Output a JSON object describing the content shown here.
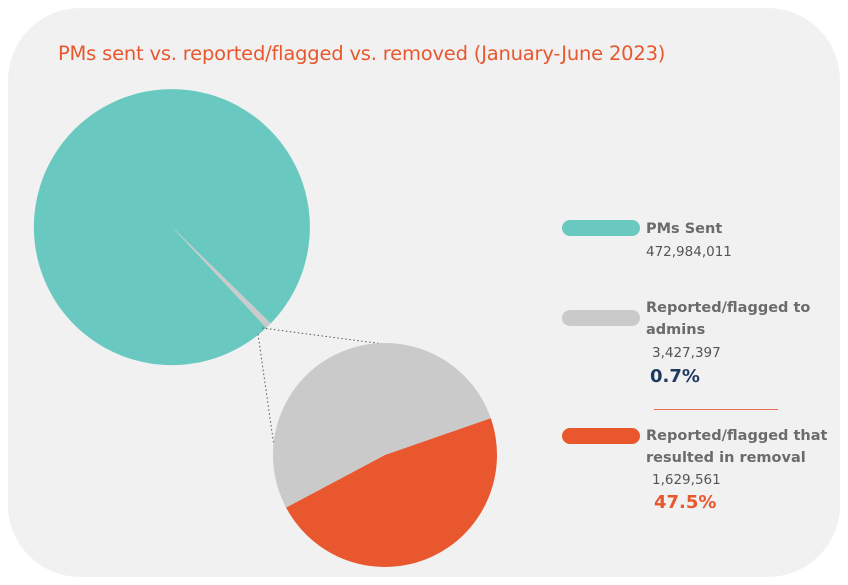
{
  "colors": {
    "sent": "#69c9c0",
    "reported": "#cacaca",
    "removed": "#e8572d",
    "pct_reported": "#1f3a5f",
    "pct_removed": "#e8572d"
  },
  "chart_data": {
    "type": "pie",
    "title": "PMs sent vs. reported/flagged vs. removed (January-June 2023)",
    "main_pie": {
      "slices": [
        {
          "label": "PMs Sent",
          "value": 472984011
        },
        {
          "label": "Reported/flagged to admins",
          "value": 3427397
        }
      ]
    },
    "detail_pie": {
      "slices": [
        {
          "label": "Reported/flagged to admins",
          "value": 1797836
        },
        {
          "label": "Reported/flagged that resulted in removal",
          "value": 1629561
        }
      ]
    },
    "legend": [
      {
        "name": "PMs Sent",
        "value": "472,984,011",
        "percent": ""
      },
      {
        "name": "Reported/flagged to admins",
        "value": "3,427,397",
        "percent": "0.7%"
      },
      {
        "name": "Reported/flagged that resulted in removal",
        "value": "1,629,561",
        "percent": "47.5%"
      }
    ]
  }
}
